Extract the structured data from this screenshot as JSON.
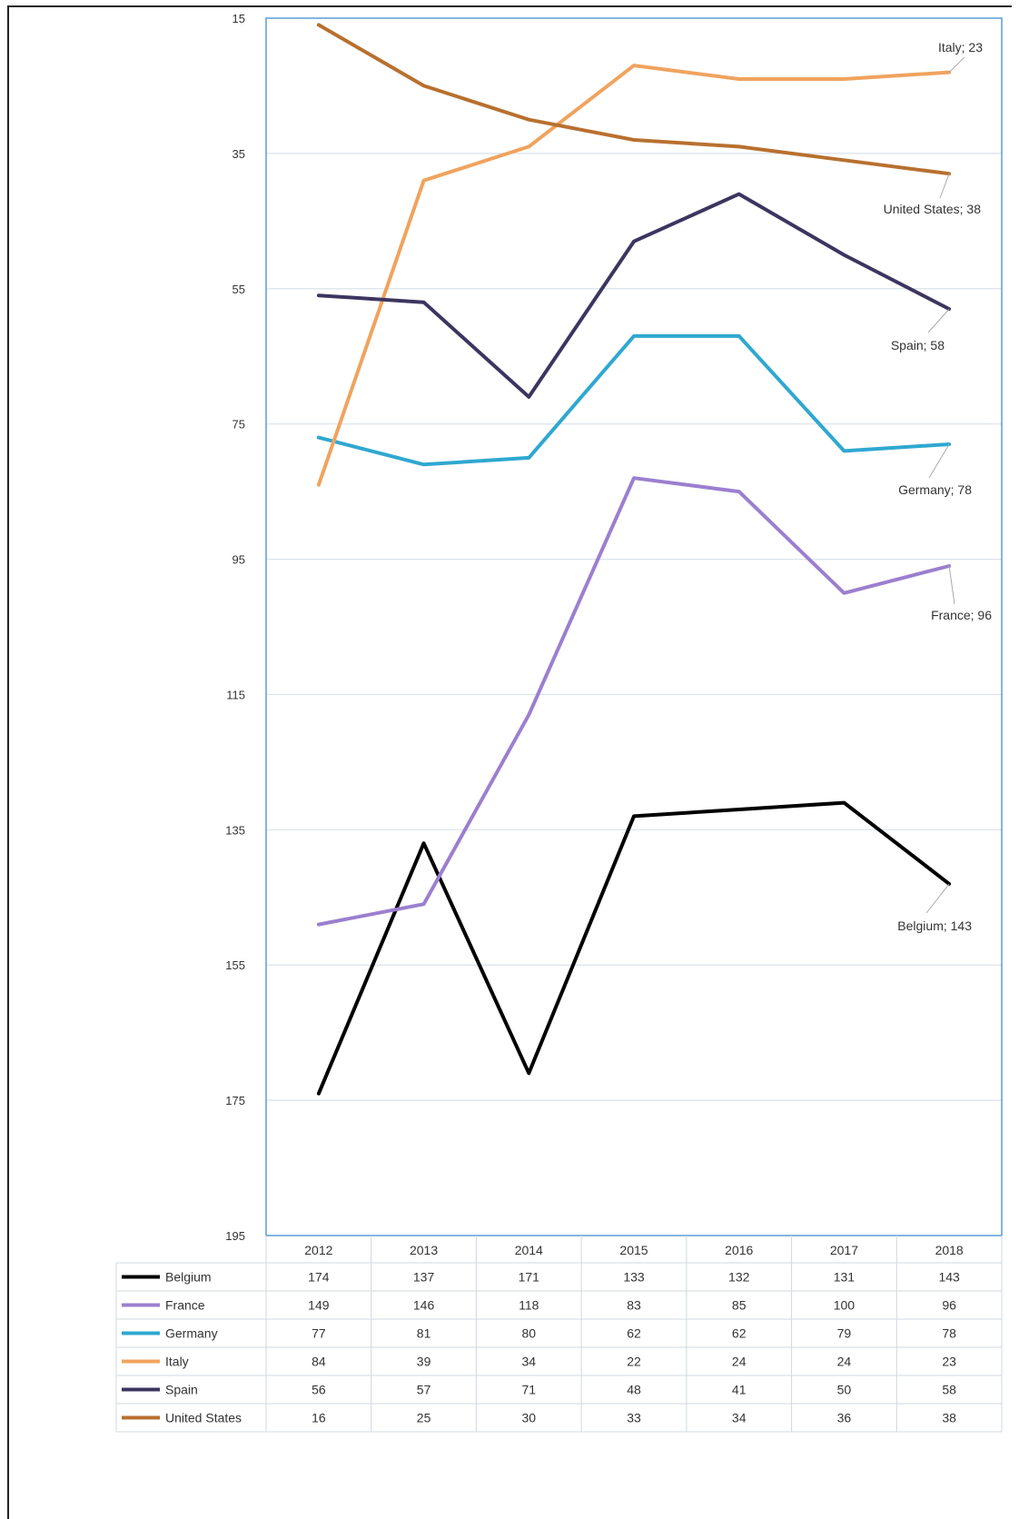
{
  "chart_data": {
    "type": "line",
    "title": "",
    "xlabel": "",
    "ylabel": "",
    "y_axis": {
      "min": 15,
      "max": 195,
      "step": 20,
      "reversed": true
    },
    "y_ticks": [
      "15",
      "35",
      "55",
      "75",
      "95",
      "115",
      "135",
      "155",
      "175",
      "195"
    ],
    "grid": true,
    "legend": "data table below chart",
    "categories": [
      "2012",
      "2013",
      "2014",
      "2015",
      "2016",
      "2017",
      "2018"
    ],
    "series": [
      {
        "name": "Belgium",
        "color": "#000000",
        "values": [
          174,
          137,
          171,
          133,
          132,
          131,
          143
        ],
        "end_label": "Belgium; 143"
      },
      {
        "name": "France",
        "color": "#9b7fcf",
        "values": [
          149,
          146,
          118,
          83,
          85,
          100,
          96
        ],
        "end_label": "France; 96"
      },
      {
        "name": "Germany",
        "color": "#2fa8d0",
        "values": [
          77,
          81,
          80,
          62,
          62,
          79,
          78
        ],
        "end_label": "Germany; 78"
      },
      {
        "name": "Italy",
        "color": "#f0a35e",
        "values": [
          84,
          39,
          34,
          22,
          24,
          24,
          23
        ],
        "end_label": "Italy; 23"
      },
      {
        "name": "Spain",
        "color": "#3d3560",
        "values": [
          56,
          57,
          71,
          48,
          41,
          50,
          58
        ],
        "end_label": "Spain; 58"
      },
      {
        "name": "United States",
        "color": "#b8702f",
        "values": [
          16,
          25,
          30,
          33,
          34,
          36,
          38
        ],
        "end_label": "United States; 38"
      }
    ],
    "table": {
      "rows": [
        {
          "label": "Belgium",
          "values": [
            "174",
            "137",
            "171",
            "133",
            "132",
            "131",
            "143"
          ]
        },
        {
          "label": "France",
          "values": [
            "149",
            "146",
            "118",
            "83",
            "85",
            "100",
            "96"
          ]
        },
        {
          "label": "Germany",
          "values": [
            "77",
            "81",
            "80",
            "62",
            "62",
            "79",
            "78"
          ]
        },
        {
          "label": "Italy",
          "values": [
            "84",
            "39",
            "34",
            "22",
            "24",
            "24",
            "23"
          ]
        },
        {
          "label": "Spain",
          "values": [
            "56",
            "57",
            "71",
            "48",
            "41",
            "50",
            "58"
          ]
        },
        {
          "label": "United States",
          "values": [
            "16",
            "25",
            "30",
            "33",
            "34",
            "36",
            "38"
          ]
        }
      ]
    }
  }
}
